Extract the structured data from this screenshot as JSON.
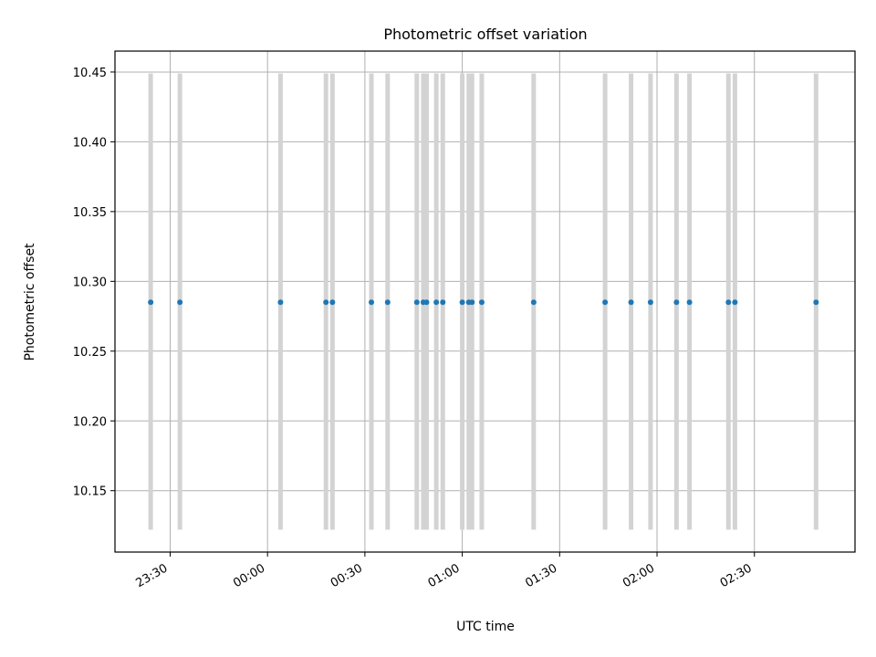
{
  "chart_data": {
    "type": "scatter",
    "title": "Photometric offset variation",
    "xlabel": "UTC time",
    "ylabel": "Photometric offset",
    "x_axis": "time (UTC, minutes relative to 00:00)",
    "xlim": [
      -47,
      181
    ],
    "ylim": [
      10.106,
      10.465
    ],
    "grid": true,
    "x_ticks": [
      {
        "value": -30,
        "label": "23:30"
      },
      {
        "value": 0,
        "label": "00:00"
      },
      {
        "value": 30,
        "label": "00:30"
      },
      {
        "value": 60,
        "label": "01:00"
      },
      {
        "value": 90,
        "label": "01:30"
      },
      {
        "value": 120,
        "label": "02:00"
      },
      {
        "value": 150,
        "label": "02:30"
      }
    ],
    "y_ticks": [
      {
        "value": 10.15,
        "label": "10.15"
      },
      {
        "value": 10.2,
        "label": "10.20"
      },
      {
        "value": 10.25,
        "label": "10.25"
      },
      {
        "value": 10.3,
        "label": "10.30"
      },
      {
        "value": 10.35,
        "label": "10.35"
      },
      {
        "value": 10.4,
        "label": "10.40"
      },
      {
        "value": 10.45,
        "label": "10.45"
      }
    ],
    "error_bars": {
      "low": 10.122,
      "high": 10.449,
      "color": "#d3d3d3"
    },
    "series": [
      {
        "color": "#1f77b4",
        "x": [
          -36,
          -27,
          4,
          18,
          20,
          32,
          37,
          46,
          48,
          49,
          52,
          54,
          60,
          62,
          63,
          66,
          82,
          104,
          112,
          118,
          126,
          130,
          142,
          144,
          169
        ],
        "y": [
          10.285,
          10.285,
          10.285,
          10.285,
          10.285,
          10.285,
          10.285,
          10.285,
          10.285,
          10.285,
          10.285,
          10.285,
          10.285,
          10.285,
          10.285,
          10.285,
          10.285,
          10.285,
          10.285,
          10.285,
          10.285,
          10.285,
          10.285,
          10.285,
          10.285
        ]
      }
    ]
  }
}
